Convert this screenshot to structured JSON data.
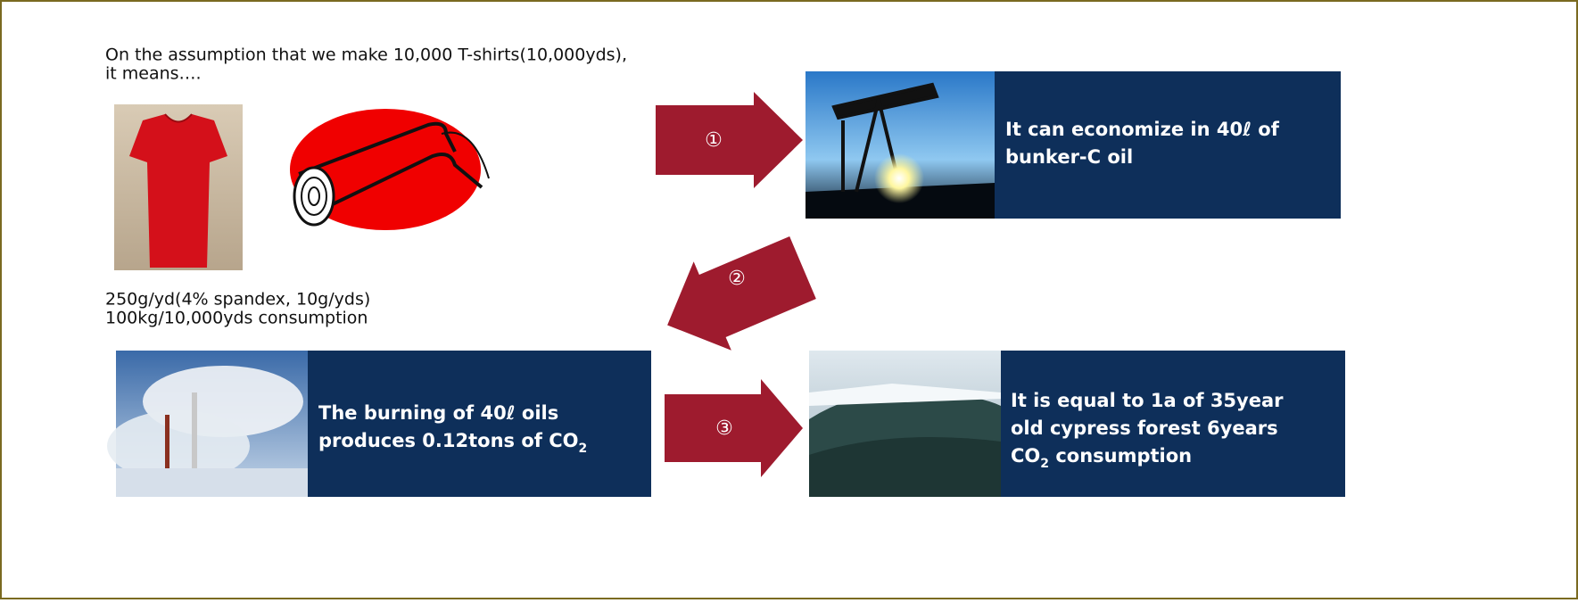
{
  "intro": [
    "On the assumption that we make 10,000 T-shirts(10,000yds),",
    "it means…."
  ],
  "specs": [
    "250g/yd(4% spandex, 10g/yds)",
    "100kg/10,000yds consumption"
  ],
  "arrows": [
    "①",
    "②",
    "③"
  ],
  "boxes": [
    {
      "lines": [
        [
          {
            "text": "It can economize in 40ℓ of"
          }
        ],
        [
          {
            "text": "bunker-C oil"
          }
        ]
      ]
    },
    {
      "lines": [
        [
          {
            "text": "The burning of 40ℓ oils"
          }
        ],
        [
          {
            "text": "produces 0.12tons of CO"
          },
          {
            "text": "2",
            "sub": true
          }
        ]
      ]
    },
    {
      "lines": [
        [
          {
            "text": "It is equal to 1a of 35year"
          }
        ],
        [
          {
            "text": "old cypress forest 6years"
          }
        ],
        [
          {
            "text": "CO"
          },
          {
            "text": "2",
            "sub": true
          },
          {
            "text": " consumption"
          }
        ]
      ]
    }
  ]
}
